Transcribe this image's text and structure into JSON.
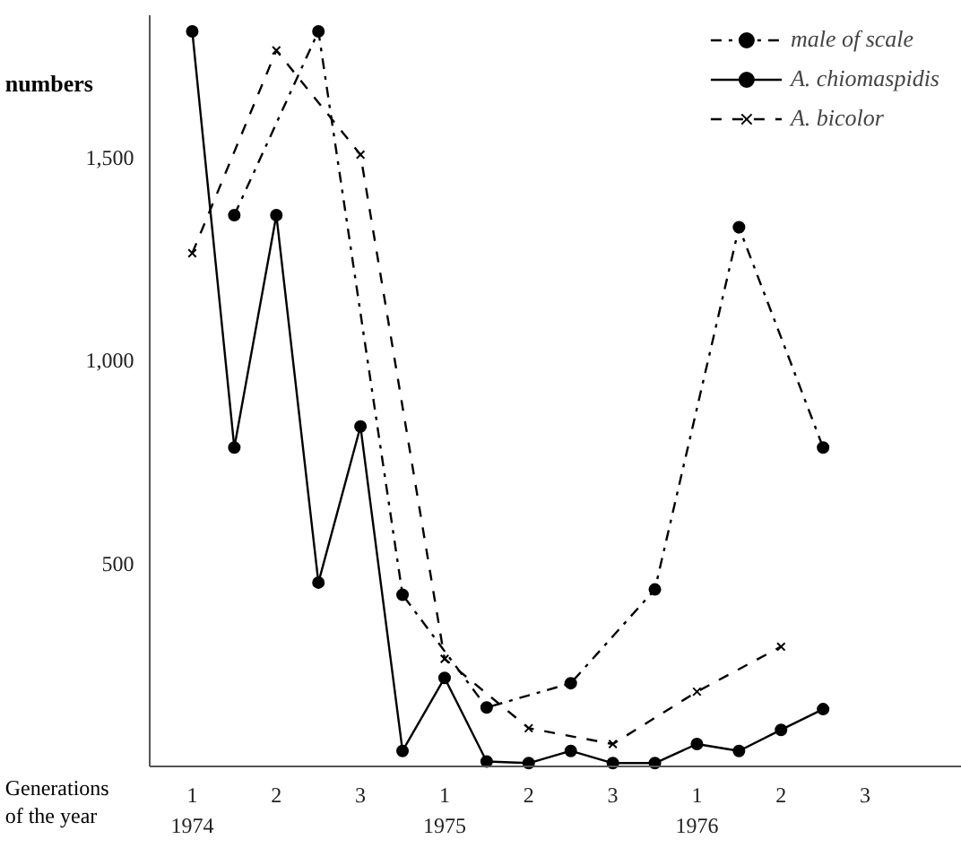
{
  "chart_data": {
    "type": "line",
    "xlabel": "Generations\nof the year",
    "ylabel": "numbers",
    "categories": [
      "1\n1974",
      null,
      "2",
      null,
      "3",
      null,
      "1\n1975",
      null,
      "2",
      null,
      "3",
      null,
      "1\n1976",
      null,
      "2",
      null,
      "3"
    ],
    "ylim": [
      0,
      1850
    ],
    "yticks": [
      500,
      {
        "value": 1000,
        "label": "1,000"
      },
      {
        "value": 1500,
        "label": "1,500"
      }
    ],
    "grid": false,
    "legend": "top right",
    "series": [
      {
        "name": "male of scale",
        "color": "#000000",
        "line_style": "dashdot",
        "marker": "circle",
        "values": [
          null,
          1359,
          null,
          1812,
          null,
          423,
          null,
          145,
          null,
          205,
          null,
          436,
          null,
          1329,
          null,
          786,
          null
        ]
      },
      {
        "name": "A. chiomaspidis",
        "color": "#000000",
        "line_style": "solid",
        "marker": "circle",
        "values": [
          1812,
          786,
          1359,
          453,
          838,
          38,
          218,
          12,
          8,
          38,
          8,
          8,
          55,
          38,
          90,
          141,
          null
        ]
      },
      {
        "name": "A. bicolor",
        "color": "#000000",
        "line_style": "dashed",
        "marker": "cross",
        "values": [
          1265,
          null,
          1765,
          null,
          1508,
          null,
          265,
          null,
          94,
          null,
          55,
          null,
          184,
          null,
          295,
          null,
          null
        ]
      }
    ]
  }
}
